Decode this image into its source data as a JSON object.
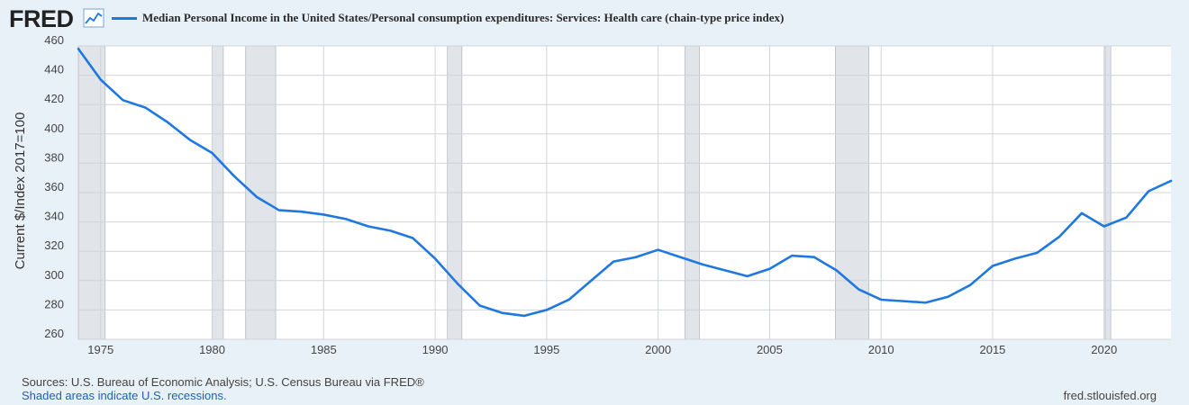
{
  "header": {
    "logo_text": "FRED",
    "logo_icon": "line-chart-icon",
    "series_label": "Median Personal Income in the United States/Personal consumption expenditures: Services: Health care (chain-type price index)",
    "series_color": "#1f78e0"
  },
  "chart_data": {
    "type": "line",
    "title": "Median Personal Income in the United States/Personal consumption expenditures: Services: Health care (chain-type price index)",
    "xlabel": "",
    "ylabel": "Current $/Index 2017=100",
    "xlim": [
      1974,
      2023
    ],
    "ylim": [
      260,
      460
    ],
    "y_ticks": [
      260,
      280,
      300,
      320,
      340,
      360,
      380,
      400,
      420,
      440,
      460
    ],
    "x_ticks": [
      1975,
      1980,
      1985,
      1990,
      1995,
      2000,
      2005,
      2010,
      2015,
      2020
    ],
    "grid": true,
    "series": [
      {
        "name": "Median Personal Income in the United States/Personal consumption expenditures: Services: Health care (chain-type price index)",
        "color": "#1f78e0",
        "x": [
          1974,
          1975,
          1976,
          1977,
          1978,
          1979,
          1980,
          1981,
          1982,
          1983,
          1984,
          1985,
          1986,
          1987,
          1988,
          1989,
          1990,
          1991,
          1992,
          1993,
          1994,
          1995,
          1996,
          1997,
          1998,
          1999,
          2000,
          2001,
          2002,
          2003,
          2004,
          2005,
          2006,
          2007,
          2008,
          2009,
          2010,
          2011,
          2012,
          2013,
          2014,
          2015,
          2016,
          2017,
          2018,
          2019,
          2020,
          2021,
          2022,
          2023
        ],
        "values": [
          458,
          437,
          423,
          418,
          408,
          396,
          387,
          371,
          357,
          348,
          347,
          345,
          342,
          337,
          334,
          329,
          315,
          298,
          283,
          278,
          276,
          280,
          287,
          300,
          313,
          316,
          321,
          316,
          311,
          307,
          303,
          308,
          317,
          316,
          307,
          294,
          287,
          286,
          285,
          289,
          297,
          310,
          315,
          319,
          330,
          346,
          337,
          343,
          361,
          368
        ]
      }
    ],
    "recessions": [
      {
        "start": 1973.9,
        "end": 1975.2
      },
      {
        "start": 1980.0,
        "end": 1980.5
      },
      {
        "start": 1981.5,
        "end": 1982.85
      },
      {
        "start": 1990.55,
        "end": 1991.2
      },
      {
        "start": 2001.2,
        "end": 2001.85
      },
      {
        "start": 2007.95,
        "end": 2009.45
      },
      {
        "start": 2020.05,
        "end": 2020.3
      }
    ]
  },
  "footer": {
    "sources": "Sources: U.S. Bureau of Economic Analysis; U.S. Census Bureau via FRED®",
    "recessions_note": "Shaded areas indicate U.S. recessions.",
    "url": "fred.stlouisfed.org"
  }
}
